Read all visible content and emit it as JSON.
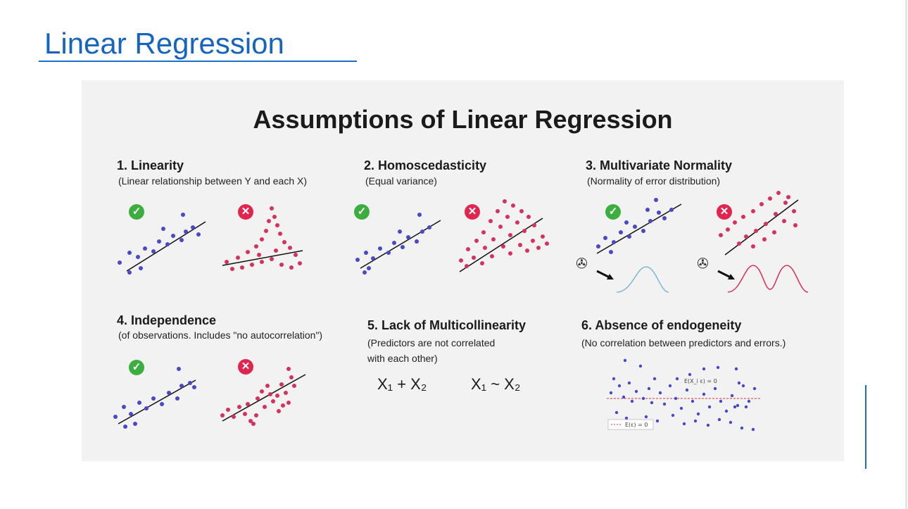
{
  "slide": {
    "title": "Linear Regression"
  },
  "infographic": {
    "heading": "Assumptions of Linear Regression",
    "colors": {
      "good_points": "#4848c8",
      "bad_points": "#d8305e",
      "ok_badge": "#3cae3f",
      "bad_badge": "#e0254e",
      "normal_curve": "#7ab8d8",
      "bimodal_curve": "#d8305e"
    },
    "sections": [
      {
        "title": "1. Linearity",
        "subtitle": "(Linear relationship between Y and each X)",
        "ok_icon": "check-icon",
        "bad_icon": "cross-icon"
      },
      {
        "title": "2. Homoscedasticity",
        "subtitle": "(Equal variance)",
        "ok_icon": "check-icon",
        "bad_icon": "cross-icon"
      },
      {
        "title": "3. Multivariate Normality",
        "subtitle": "(Normality of error distribution)",
        "ok_icon": "check-icon",
        "bad_icon": "cross-icon"
      },
      {
        "title": "4. Independence",
        "subtitle": "(of observations. Includes \"no autocorrelation\")",
        "ok_icon": "check-icon",
        "bad_icon": "cross-icon"
      },
      {
        "title": "5. Lack of Multicollinearity",
        "subtitle_line1": "(Predictors are not correlated",
        "subtitle_line2": "with each other)",
        "formula_left": "X₁ + X₂",
        "formula_right": "X₁ ~ X₂"
      },
      {
        "title": "6. Absence of endogeneity",
        "subtitle": "(No correlation between predictors and errors.)",
        "annotation": "E(X_i ε) = 0",
        "legend": "E(ε) = 0"
      }
    ]
  }
}
